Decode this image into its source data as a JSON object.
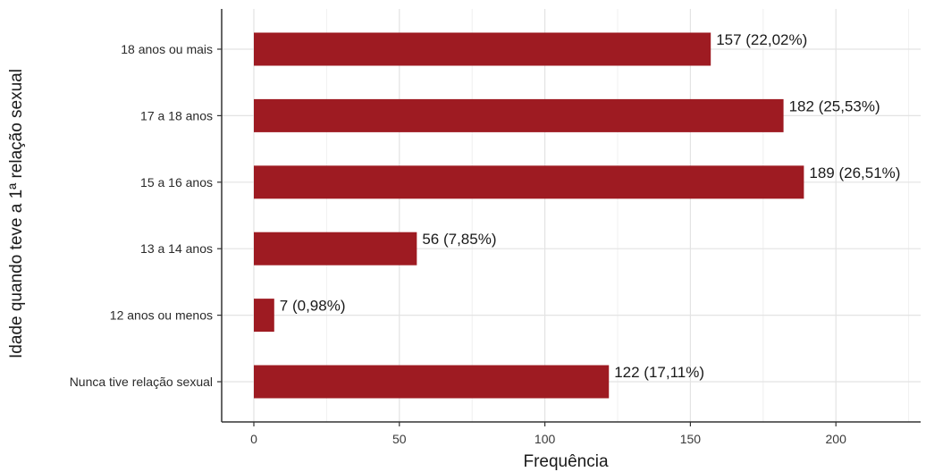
{
  "chart_data": {
    "type": "bar",
    "orientation": "horizontal",
    "categories": [
      "18 anos ou mais",
      "17 a 18 anos",
      "15 a 16 anos",
      "13 a 14 anos",
      "12 anos ou menos",
      "Nunca tive relação sexual"
    ],
    "values": [
      157,
      182,
      189,
      56,
      7,
      122
    ],
    "data_labels": [
      "157 (22,02%)",
      "182 (25,53%)",
      "189 (26,51%)",
      "56 (7,85%)",
      "7 (0,98%)",
      "122 (17,11%)"
    ],
    "xlabel": "Frequência",
    "ylabel": "Idade quando teve a 1ª relação sexual",
    "xlim": [
      0,
      230
    ],
    "xticks": [
      0,
      50,
      100,
      150,
      200
    ],
    "grid": true,
    "bar_color": "#9e1b22"
  }
}
